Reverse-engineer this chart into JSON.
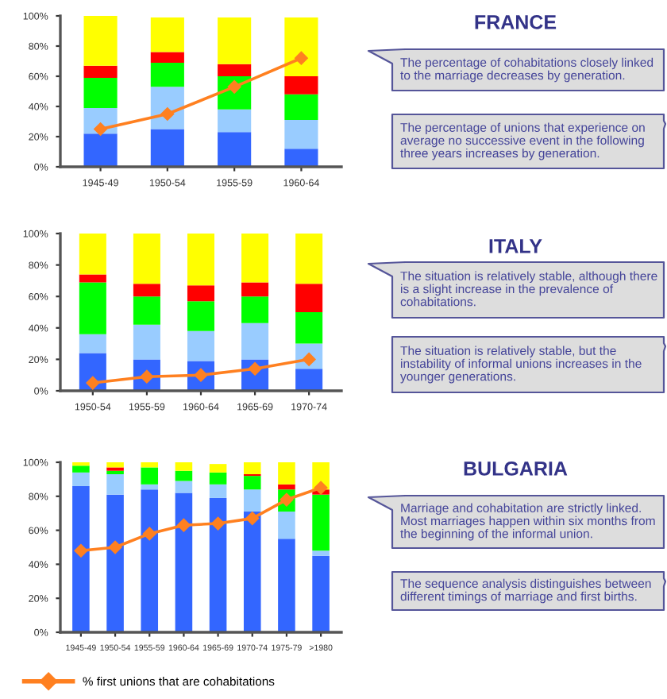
{
  "chart_data": [
    {
      "type": "bar",
      "stacked": true,
      "categories": [
        "1945-49",
        "1950-54",
        "1955-59",
        "1960-64"
      ],
      "series": [
        {
          "color": "#3366ff",
          "values": [
            22,
            25,
            23,
            12
          ]
        },
        {
          "color": "#99ccff",
          "values": [
            17,
            28,
            15,
            19
          ]
        },
        {
          "color": "#00ff00",
          "values": [
            20,
            16,
            22,
            17
          ]
        },
        {
          "color": "#ff0000",
          "values": [
            8,
            7,
            8,
            12
          ]
        },
        {
          "color": "#ffff00",
          "values": [
            33,
            23,
            31,
            39
          ]
        },
        {
          "type": "line",
          "color": "#ff8020",
          "values": [
            25,
            35,
            53,
            72
          ],
          "marker": "diamond"
        }
      ],
      "ylim": [
        0,
        100
      ],
      "yticks": [
        {
          "value": 0,
          "label": "0%"
        },
        {
          "value": 20,
          "label": "20%"
        },
        {
          "value": 40,
          "label": "40%"
        },
        {
          "value": 60,
          "label": "60%"
        },
        {
          "value": 80,
          "label": "80%"
        },
        {
          "value": 100,
          "label": "100%"
        }
      ]
    },
    {
      "type": "other",
      "title": "FRANCE",
      "annotations": [
        "The percentage of cohabitations closely linked to the marriage decreases by generation.",
        "The percentage of unions that experience on average no successive event in the following three years increases by generation."
      ]
    },
    {
      "type": "bar",
      "stacked": true,
      "categories": [
        "1950-54",
        "1955-59",
        "1960-64",
        "1965-69",
        "1970-74"
      ],
      "series": [
        {
          "color": "#3366ff",
          "values": [
            24,
            20,
            19,
            20,
            14
          ]
        },
        {
          "color": "#99ccff",
          "values": [
            12,
            22,
            19,
            23,
            16
          ]
        },
        {
          "color": "#00ff00",
          "values": [
            33,
            18,
            19,
            17,
            20
          ]
        },
        {
          "color": "#ff0000",
          "values": [
            5,
            8,
            10,
            9,
            18
          ]
        },
        {
          "color": "#ffff00",
          "values": [
            26,
            32,
            33,
            31,
            32
          ]
        },
        {
          "type": "line",
          "color": "#ff8020",
          "values": [
            5,
            9,
            10,
            14,
            20
          ],
          "marker": "diamond"
        }
      ],
      "ylim": [
        0,
        100
      ],
      "yticks": [
        {
          "value": 0,
          "label": "0%"
        },
        {
          "value": 20,
          "label": "20%"
        },
        {
          "value": 40,
          "label": "40%"
        },
        {
          "value": 60,
          "label": "60%"
        },
        {
          "value": 80,
          "label": "80%"
        },
        {
          "value": 100,
          "label": "100%"
        }
      ]
    },
    {
      "type": "other",
      "title": "ITALY",
      "annotations": [
        "The situation is relatively stable, although there is a slight increase in the prevalence of cohabitations.",
        "The situation is relatively stable, but the instability of informal unions increases in the younger generations."
      ]
    },
    {
      "type": "bar",
      "stacked": true,
      "categories": [
        "1945-49",
        "1950-54",
        "1955-59",
        "1960-64",
        "1965-69",
        "1970-74",
        "1975-79",
        ">1980"
      ],
      "series": [
        {
          "color": "#3366ff",
          "values": [
            86,
            81,
            84,
            82,
            79,
            71,
            55,
            45
          ]
        },
        {
          "color": "#99ccff",
          "values": [
            8,
            12,
            3,
            7,
            8,
            13,
            16,
            3
          ]
        },
        {
          "color": "#00ff00",
          "values": [
            4,
            2,
            10,
            6,
            7,
            8,
            13,
            33
          ]
        },
        {
          "color": "#ff0000",
          "values": [
            0,
            2,
            0,
            0,
            0,
            1,
            3,
            3
          ]
        },
        {
          "color": "#ffff00",
          "values": [
            2,
            3,
            3,
            5,
            5,
            7,
            13,
            16
          ]
        },
        {
          "type": "line",
          "name": "% first unions that are cohabitations",
          "color": "#ff8020",
          "values": [
            48,
            50,
            58,
            63,
            64,
            67,
            78,
            85
          ],
          "marker": "diamond"
        }
      ],
      "ylim": [
        0,
        100
      ],
      "yticks": [
        {
          "value": 0,
          "label": "0%"
        },
        {
          "value": 20,
          "label": "20%"
        },
        {
          "value": 40,
          "label": "40%"
        },
        {
          "value": 60,
          "label": "60%"
        },
        {
          "value": 80,
          "label": "80%"
        },
        {
          "value": 100,
          "label": "100%"
        }
      ],
      "legend": "bottom left"
    },
    {
      "type": "other",
      "title": "BULGARIA",
      "annotations": [
        "Marriage and cohabitation are strictly linked. Most marriages happen within six months from the beginning of the informal union.",
        "The sequence analysis distinguishes between different timings of marriage and first births."
      ]
    }
  ]
}
